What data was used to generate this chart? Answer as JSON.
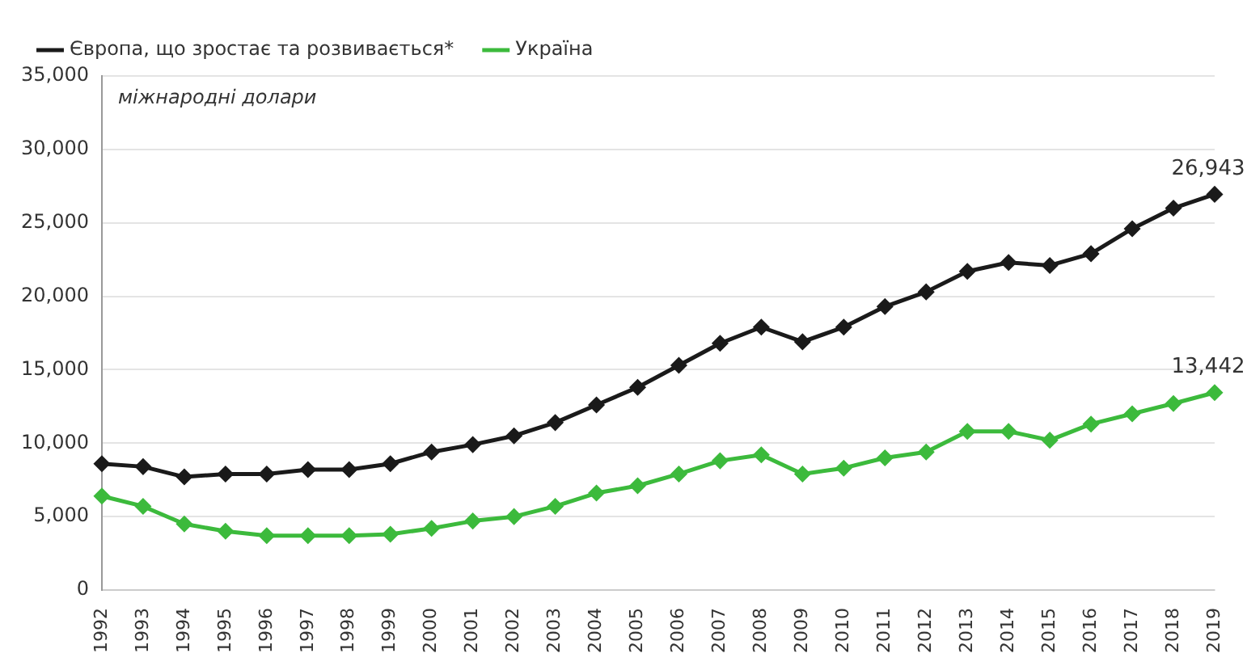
{
  "chart_data": {
    "type": "line",
    "annotations": [
      "міжнародні долари"
    ],
    "categories": [
      "1992",
      "1993",
      "1994",
      "1995",
      "1996",
      "1997",
      "1998",
      "1999",
      "2000",
      "2001",
      "2002",
      "2003",
      "2004",
      "2005",
      "2006",
      "2007",
      "2008",
      "2009",
      "2010",
      "2011",
      "2012",
      "2013",
      "2014",
      "2015",
      "2016",
      "2017",
      "2018",
      "2019"
    ],
    "series": [
      {
        "name": "Європа, що зростає та розвивається*",
        "color": "#1a1a1a",
        "values": [
          8600,
          8400,
          7700,
          7900,
          7900,
          8200,
          8200,
          8600,
          9400,
          9900,
          10500,
          11400,
          12600,
          13800,
          15300,
          16800,
          17900,
          16900,
          17900,
          19300,
          20300,
          21700,
          22300,
          22100,
          22900,
          24600,
          26000,
          26943
        ],
        "value_labels": [
          null,
          null,
          null,
          null,
          null,
          null,
          null,
          null,
          null,
          null,
          null,
          null,
          null,
          null,
          null,
          null,
          null,
          null,
          null,
          null,
          null,
          null,
          null,
          null,
          null,
          null,
          null,
          "26,943"
        ]
      },
      {
        "name": "Україна",
        "color": "#3cba3c",
        "values": [
          6400,
          5700,
          4500,
          4000,
          3700,
          3700,
          3700,
          3800,
          4200,
          4700,
          5000,
          5700,
          6600,
          7100,
          7900,
          8800,
          9200,
          7900,
          8300,
          9000,
          9400,
          10800,
          10800,
          10200,
          11300,
          12000,
          12700,
          13442
        ],
        "value_labels": [
          null,
          null,
          null,
          null,
          null,
          null,
          null,
          null,
          null,
          null,
          null,
          null,
          null,
          null,
          null,
          null,
          null,
          null,
          null,
          null,
          null,
          null,
          null,
          null,
          null,
          null,
          null,
          "13,442"
        ]
      }
    ],
    "ylim": [
      0,
      35000
    ],
    "yticks": [
      0,
      {
        "value": 5000,
        "label": "5,000"
      },
      {
        "value": 10000,
        "label": "10,000"
      },
      {
        "value": 15000,
        "label": "15,000"
      },
      {
        "value": 20000,
        "label": "20,000"
      },
      {
        "value": 25000,
        "label": "25,000"
      },
      {
        "value": 30000,
        "label": "30,000"
      },
      {
        "value": 35000,
        "label": "35,000"
      }
    ],
    "grid": "y",
    "legend": "top left",
    "marker": "diamond",
    "line_style": "solid"
  }
}
